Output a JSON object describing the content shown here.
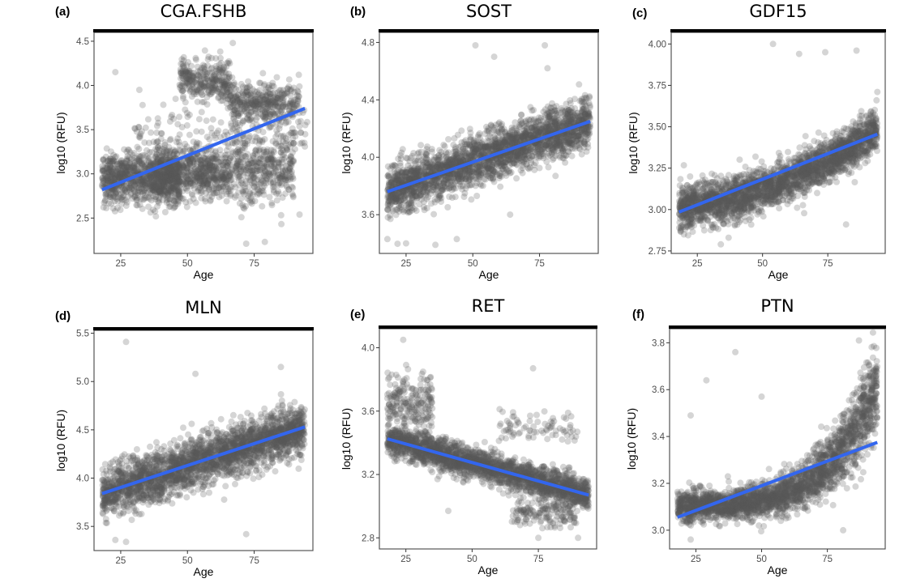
{
  "figure": {
    "description": "Six scatter plots of protein levels (log10 RFU) versus Age with linear fit lines",
    "point_color": "#595959",
    "fit_color": "#3366ee",
    "strip_color": "#000000"
  },
  "chart_data": [
    {
      "type": "scatter",
      "panel_label": "(a)",
      "title": "CGA.FSHB",
      "xlabel": "Age",
      "ylabel": "log10 (RFU)",
      "xlim": [
        15,
        97
      ],
      "ylim": [
        2.1,
        4.6
      ],
      "xticks": [
        25,
        50,
        75
      ],
      "xtick_labels": [
        "25",
        "50",
        "75"
      ],
      "yticks": [
        2.5,
        3.0,
        3.5,
        4.0,
        4.5
      ],
      "ytick_labels": [
        "2.5",
        "3.0",
        "3.5",
        "4.0",
        "4.5"
      ],
      "grid": false,
      "fit_line": {
        "x": [
          18,
          94
        ],
        "y": [
          2.82,
          3.74
        ]
      },
      "clusters": [
        {
          "x": [
            18,
            47
          ],
          "y_center": 2.95,
          "y_spread": 0.27,
          "n": 900
        },
        {
          "x": [
            38,
            66
          ],
          "y_center": 3.0,
          "y_spread": 0.25,
          "n": 650
        },
        {
          "x": [
            66,
            90
          ],
          "y_center": 3.05,
          "y_spread": 0.35,
          "n": 400
        },
        {
          "x": [
            47,
            66
          ],
          "y_center": 4.05,
          "y_spread": 0.2,
          "n": 300
        },
        {
          "x": [
            66,
            92
          ],
          "y_center": 3.8,
          "y_spread": 0.22,
          "n": 400
        },
        {
          "x": [
            30,
            95
          ],
          "y_center": 3.45,
          "y_spread": 0.35,
          "n": 180
        }
      ],
      "outliers": [
        [
          23,
          4.15
        ],
        [
          67,
          4.48
        ],
        [
          72,
          2.21
        ],
        [
          79,
          2.23
        ],
        [
          92,
          2.54
        ],
        [
          94,
          3.31
        ]
      ]
    },
    {
      "type": "scatter",
      "panel_label": "(b)",
      "title": "SOST",
      "xlabel": "Age",
      "ylabel": "log10 (RFU)",
      "xlim": [
        15,
        97
      ],
      "ylim": [
        3.33,
        4.87
      ],
      "xticks": [
        25,
        50,
        75
      ],
      "xtick_labels": [
        "25",
        "50",
        "75"
      ],
      "yticks": [
        3.6,
        4.0,
        4.4,
        4.8
      ],
      "ytick_labels": [
        "3.6",
        "4.0",
        "4.4",
        "4.8"
      ],
      "grid": false,
      "fit_line": {
        "x": [
          18,
          94
        ],
        "y": [
          3.76,
          4.25
        ]
      },
      "clusters": [
        {
          "x": [
            18,
            94
          ],
          "trend": true,
          "y_spread": 0.16,
          "n": 2600
        }
      ],
      "outliers": [
        [
          51,
          4.78
        ],
        [
          77,
          4.78
        ],
        [
          58,
          4.7
        ],
        [
          78,
          4.62
        ],
        [
          18,
          3.43
        ],
        [
          25,
          3.4
        ],
        [
          44,
          3.43
        ],
        [
          36,
          3.39
        ],
        [
          64,
          3.6
        ]
      ]
    },
    {
      "type": "scatter",
      "panel_label": "(c)",
      "title": "GDF15",
      "xlabel": "Age",
      "ylabel": "log10 (RFU)",
      "xlim": [
        15,
        97
      ],
      "ylim": [
        2.735,
        4.07
      ],
      "xticks": [
        25,
        50,
        75
      ],
      "xtick_labels": [
        "25",
        "50",
        "75"
      ],
      "yticks": [
        2.75,
        3.0,
        3.25,
        3.5,
        3.75,
        4.0
      ],
      "ytick_labels": [
        "2.75",
        "3.00",
        "3.25",
        "3.50",
        "3.75",
        "4.00"
      ],
      "grid": false,
      "fit_line": {
        "x": [
          18,
          94
        ],
        "y": [
          2.985,
          3.455
        ]
      },
      "clusters": [
        {
          "x": [
            18,
            94
          ],
          "trend": "convex",
          "y_spread": 0.12,
          "n": 2600
        }
      ],
      "outliers": [
        [
          54,
          4.0
        ],
        [
          86,
          3.96
        ],
        [
          64,
          3.94
        ],
        [
          74,
          3.95
        ],
        [
          34,
          2.79
        ],
        [
          37,
          2.83
        ],
        [
          82,
          2.91
        ],
        [
          94,
          3.71
        ]
      ]
    },
    {
      "type": "scatter",
      "panel_label": "(d)",
      "title": "MLN",
      "xlabel": "Age",
      "ylabel": "log10 (RFU)",
      "xlim": [
        15,
        97
      ],
      "ylim": [
        3.25,
        5.53
      ],
      "xticks": [
        25,
        50,
        75
      ],
      "xtick_labels": [
        "25",
        "50",
        "75"
      ],
      "yticks": [
        3.5,
        4.0,
        4.5,
        5.0,
        5.5
      ],
      "ytick_labels": [
        "3.5",
        "4.0",
        "4.5",
        "5.0",
        "5.5"
      ],
      "grid": false,
      "fit_line": {
        "x": [
          18,
          94
        ],
        "y": [
          3.84,
          4.53
        ]
      },
      "clusters": [
        {
          "x": [
            18,
            94
          ],
          "trend": true,
          "y_spread": 0.24,
          "n": 2600
        }
      ],
      "outliers": [
        [
          27,
          5.41
        ],
        [
          53,
          5.08
        ],
        [
          85,
          5.15
        ],
        [
          72,
          3.42
        ],
        [
          27,
          3.34
        ],
        [
          23,
          3.36
        ]
      ]
    },
    {
      "type": "scatter",
      "panel_label": "(e)",
      "title": "RET",
      "xlabel": "Age",
      "ylabel": "log10 (RFU)",
      "xlim": [
        15,
        97
      ],
      "ylim": [
        2.73,
        4.12
      ],
      "xticks": [
        25,
        50,
        75
      ],
      "xtick_labels": [
        "25",
        "50",
        "75"
      ],
      "yticks": [
        2.8,
        3.2,
        3.6,
        4.0
      ],
      "ytick_labels": [
        "2.8",
        "3.2",
        "3.6",
        "4.0"
      ],
      "grid": false,
      "fit_line": {
        "x": [
          18,
          94
        ],
        "y": [
          3.425,
          3.07
        ]
      },
      "clusters": [
        {
          "x": [
            18,
            94
          ],
          "trend": true,
          "y_spread": 0.09,
          "n": 2300
        },
        {
          "x": [
            18,
            35
          ],
          "y_center": 3.65,
          "y_spread": 0.17,
          "n": 220
        },
        {
          "x": [
            60,
            90
          ],
          "y_center": 3.5,
          "y_spread": 0.1,
          "n": 80
        },
        {
          "x": [
            65,
            90
          ],
          "y_center": 2.95,
          "y_spread": 0.07,
          "n": 150
        }
      ],
      "outliers": [
        [
          24,
          4.05
        ],
        [
          73,
          3.87
        ],
        [
          75,
          2.8
        ],
        [
          90,
          2.8
        ],
        [
          93,
          3.05
        ],
        [
          41,
          2.97
        ]
      ]
    },
    {
      "type": "scatter",
      "panel_label": "(f)",
      "title": "PTN",
      "xlabel": "Age",
      "ylabel": "log10 (RFU)",
      "xlim": [
        15,
        97
      ],
      "ylim": [
        2.92,
        3.86
      ],
      "xticks": [
        25,
        50,
        75
      ],
      "xtick_labels": [
        "25",
        "50",
        "75"
      ],
      "yticks": [
        3.0,
        3.2,
        3.4,
        3.6,
        3.8
      ],
      "ytick_labels": [
        "3.0",
        "3.2",
        "3.4",
        "3.6",
        "3.8"
      ],
      "grid": false,
      "fit_line": {
        "x": [
          18,
          94
        ],
        "y": [
          3.055,
          3.375
        ]
      },
      "clusters": [
        {
          "x": [
            18,
            94
          ],
          "trend": "exponential",
          "y_spread": 0.06,
          "n": 2600
        }
      ],
      "outliers": [
        [
          40,
          3.76
        ],
        [
          29,
          3.64
        ],
        [
          23,
          3.49
        ],
        [
          50,
          3.57
        ],
        [
          87,
          3.81
        ],
        [
          23,
          2.96
        ],
        [
          81,
          3.0
        ]
      ]
    }
  ]
}
